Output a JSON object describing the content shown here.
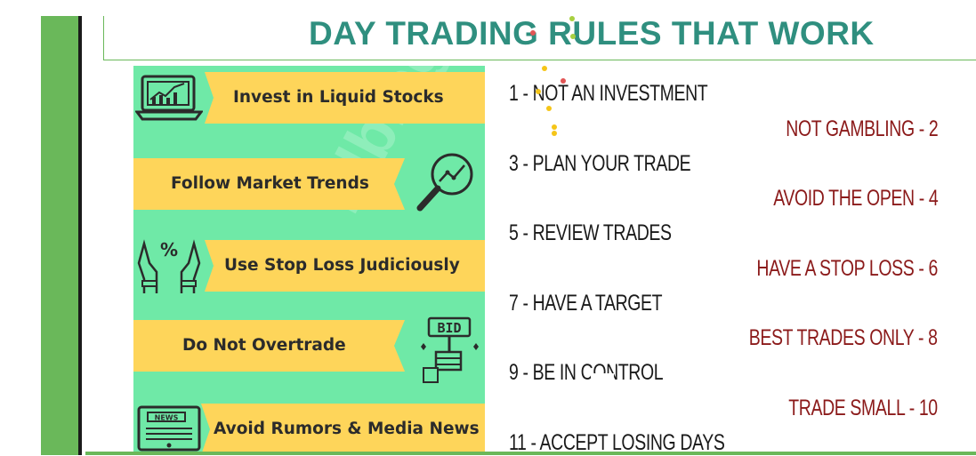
{
  "title": "DAY TRADING RULES THAT WORK",
  "infographic": {
    "items": [
      {
        "label": "Invest in Liquid Stocks",
        "icon": "laptop-chart-icon"
      },
      {
        "label": "Follow Market Trends",
        "icon": "magnifier-trend-icon"
      },
      {
        "label": "Use Stop Loss Judiciously",
        "icon": "hands-percent-icon"
      },
      {
        "label": "Do Not Overtrade",
        "icon": "bid-sign-icon",
        "icon_text": "BID"
      },
      {
        "label": "Avoid Rumors & Media News",
        "icon": "newspaper-icon",
        "icon_text": "NEWS"
      }
    ],
    "watermark": "Elblogger",
    "colors": {
      "background": "#6fe9a7",
      "banner": "#fed55a"
    }
  },
  "rules": [
    "1 - NOT AN INVESTMENT",
    "NOT GAMBLING - 2",
    "3 - PLAN YOUR TRADE",
    "AVOID THE OPEN - 4",
    "5 - REVIEW TRADES",
    "HAVE A STOP LOSS - 6",
    "7 - HAVE A TARGET",
    "BEST TRADES ONLY - 8",
    "9 - BE IN CONTROL",
    "TRADE SMALL - 10",
    "11 - ACCEPT LOSING DAYS"
  ],
  "colors": {
    "title": "#2f8f7f",
    "accent": "#6ab85a",
    "rule_left": "#1a1a1a",
    "rule_right": "#8b1a1a"
  }
}
